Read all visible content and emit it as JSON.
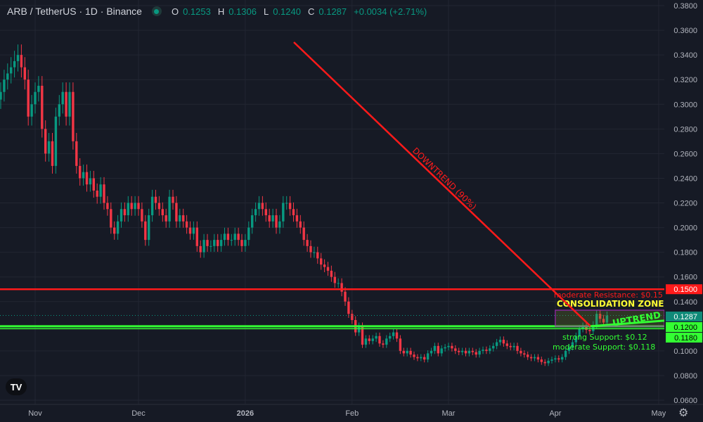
{
  "header": {
    "symbol": "ARB / TetherUS · 1D · Binance",
    "o_label": "O",
    "o": "0.1253",
    "h_label": "H",
    "h": "0.1306",
    "l_label": "L",
    "l": "0.1240",
    "c_label": "C",
    "c": "0.1287",
    "change": "+0.0034 (+2.71%)"
  },
  "logo": "TV",
  "colors": {
    "up": "#089981",
    "down": "#f23645",
    "resistance": "#ff1a1a",
    "support": "#33ff33",
    "accent": "#089981"
  },
  "chart_data": {
    "type": "candlestick",
    "start_date": "2025-10-22",
    "ylim": [
      0.06,
      0.38
    ],
    "yticks": [
      "0.3800",
      "0.3600",
      "0.3400",
      "0.3200",
      "0.3000",
      "0.2800",
      "0.2600",
      "0.2400",
      "0.2200",
      "0.2000",
      "0.1800",
      "0.1600",
      "0.1400",
      "0.1000",
      "0.0800",
      "0.0600"
    ],
    "xticks": [
      {
        "label": "Nov",
        "date": "2025-11-01"
      },
      {
        "label": "Dec",
        "date": "2025-12-01"
      },
      {
        "label": "2026",
        "date": "2026-01-01"
      },
      {
        "label": "Feb",
        "date": "2026-02-01"
      },
      {
        "label": "Mar",
        "date": "2026-03-01"
      },
      {
        "label": "Apr",
        "date": "2026-04-01"
      },
      {
        "label": "May",
        "date": "2026-05-01"
      }
    ],
    "closes": [
      0.31,
      0.32,
      0.325,
      0.33,
      0.335,
      0.34,
      0.33,
      0.32,
      0.29,
      0.3,
      0.31,
      0.315,
      0.28,
      0.26,
      0.27,
      0.25,
      0.29,
      0.3,
      0.31,
      0.29,
      0.31,
      0.27,
      0.25,
      0.24,
      0.245,
      0.235,
      0.24,
      0.23,
      0.225,
      0.235,
      0.22,
      0.215,
      0.2,
      0.195,
      0.205,
      0.215,
      0.21,
      0.22,
      0.215,
      0.22,
      0.215,
      0.205,
      0.19,
      0.21,
      0.225,
      0.22,
      0.215,
      0.21,
      0.205,
      0.225,
      0.22,
      0.205,
      0.21,
      0.205,
      0.2,
      0.195,
      0.2,
      0.185,
      0.18,
      0.19,
      0.185,
      0.185,
      0.19,
      0.185,
      0.19,
      0.195,
      0.19,
      0.19,
      0.195,
      0.19,
      0.185,
      0.19,
      0.2,
      0.21,
      0.215,
      0.22,
      0.215,
      0.21,
      0.205,
      0.21,
      0.2,
      0.205,
      0.22,
      0.22,
      0.215,
      0.21,
      0.205,
      0.2,
      0.19,
      0.185,
      0.18,
      0.18,
      0.175,
      0.17,
      0.168,
      0.165,
      0.16,
      0.155,
      0.155,
      0.148,
      0.14,
      0.13,
      0.125,
      0.115,
      0.12,
      0.105,
      0.11,
      0.108,
      0.11,
      0.112,
      0.106,
      0.105,
      0.11,
      0.112,
      0.115,
      0.11,
      0.1,
      0.098,
      0.1,
      0.097,
      0.095,
      0.094,
      0.095,
      0.093,
      0.098,
      0.1,
      0.104,
      0.098,
      0.102,
      0.103,
      0.104,
      0.102,
      0.1,
      0.099,
      0.1,
      0.098,
      0.1,
      0.099,
      0.097,
      0.1,
      0.101,
      0.1,
      0.102,
      0.104,
      0.107,
      0.109,
      0.106,
      0.104,
      0.103,
      0.104,
      0.1,
      0.098,
      0.097,
      0.095,
      0.094,
      0.095,
      0.093,
      0.091,
      0.09,
      0.092,
      0.093,
      0.094,
      0.093,
      0.095,
      0.1,
      0.103,
      0.107,
      0.112,
      0.118,
      0.12,
      0.117,
      0.116,
      0.121,
      0.13,
      0.126,
      0.123,
      0.1287
    ],
    "levels": [
      {
        "price": 0.15,
        "label": "moderate Resistance: $0.15",
        "tag": "0.1500",
        "color": "#ff1a1a"
      },
      {
        "price": 0.12,
        "label": "strong Support: $0.12",
        "tag": "0.1200",
        "color": "#33ff33"
      },
      {
        "price": 0.118,
        "label": "moderate Support: $0.118",
        "tag": "0.1180",
        "color": "#33ff33"
      }
    ],
    "last_price": {
      "price": 0.1287,
      "tag": "0.1287"
    },
    "annotations": {
      "downtrend": "DOWNTREND (90%)",
      "uptrend": "UPTREND",
      "zone": "CONSOLIDATION ZONE"
    }
  }
}
